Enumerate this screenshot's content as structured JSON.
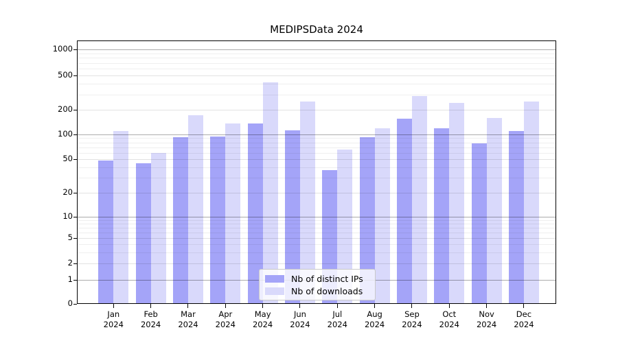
{
  "chart_data": {
    "type": "bar",
    "title": "MEDIPSData 2024",
    "categories": [
      "Jan",
      "Feb",
      "Mar",
      "Apr",
      "May",
      "Jun",
      "Jul",
      "Aug",
      "Sep",
      "Oct",
      "Nov",
      "Dec"
    ],
    "x_tick_year": "2024",
    "series": [
      {
        "name": "Nb of distinct IPs",
        "color": "#a4a4f8",
        "values": [
          48,
          45,
          92,
          95,
          135,
          112,
          37,
          92,
          155,
          120,
          78,
          110
        ]
      },
      {
        "name": "Nb of downloads",
        "color": "#d9d9fb",
        "values": [
          110,
          60,
          170,
          135,
          420,
          250,
          65,
          120,
          290,
          240,
          160,
          250
        ]
      }
    ],
    "yscale": "symlog",
    "ylim": [
      0,
      1000
    ],
    "yticks": [
      0,
      1,
      2,
      5,
      10,
      20,
      50,
      100,
      200,
      500,
      1000
    ],
    "xlabel": "",
    "ylabel": "",
    "grid": true,
    "legend_position": "lower center"
  },
  "colors": {
    "bar_ips": "#a4a4f8",
    "bar_downloads": "#d9d9fb",
    "grid_decade": "#ababab",
    "grid_labeled": "#e2e2e2",
    "grid_minor": "#efefef",
    "spine": "#000000",
    "background": "#ffffff"
  }
}
